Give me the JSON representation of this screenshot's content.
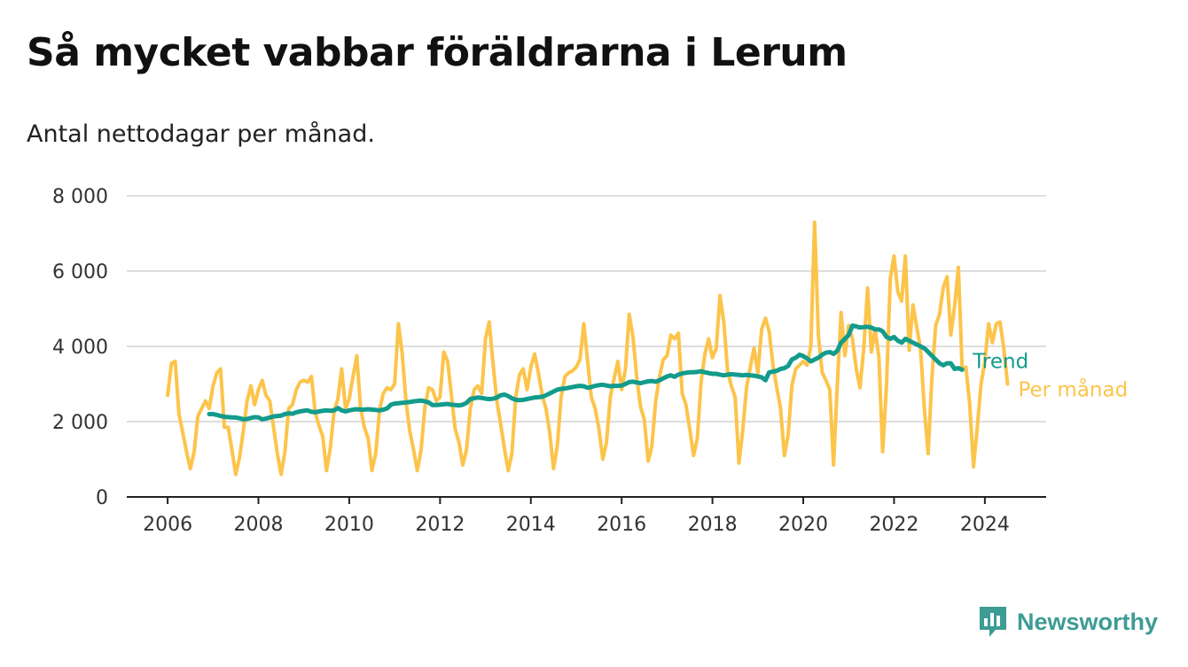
{
  "title": "Så mycket vabbar föräldrarna i Lerum",
  "subtitle": "Antal nettodagar per månad.",
  "brand": {
    "name": "Newsworthy",
    "color": "#3d9c94"
  },
  "chart_data": {
    "type": "line",
    "xlim": [
      2005.1,
      2025.35
    ],
    "ylim": [
      0,
      8000
    ],
    "yticks": [
      0,
      2000,
      4000,
      6000,
      8000
    ],
    "ytick_labels": [
      "0",
      "2 000",
      "4 000",
      "6 000",
      "8 000"
    ],
    "xticks": [
      2006,
      2008,
      2010,
      2012,
      2014,
      2016,
      2018,
      2020,
      2022,
      2024
    ],
    "xtick_labels": [
      "2006",
      "2008",
      "2010",
      "2012",
      "2014",
      "2016",
      "2018",
      "2020",
      "2022",
      "2024"
    ],
    "grid": true,
    "series": [
      {
        "name": "Per månad",
        "color": "#fcc44a",
        "x_start": 2006.0,
        "x_step_months": 1,
        "values": [
          2700,
          3550,
          3600,
          2200,
          1700,
          1200,
          750,
          1200,
          2150,
          2350,
          2550,
          2350,
          2950,
          3300,
          3400,
          1850,
          1850,
          1250,
          600,
          1050,
          1750,
          2550,
          2950,
          2450,
          2850,
          3100,
          2700,
          2550,
          1850,
          1150,
          600,
          1200,
          2350,
          2450,
          2850,
          3050,
          3100,
          3050,
          3200,
          2250,
          1900,
          1600,
          700,
          1300,
          2300,
          2600,
          3400,
          2350,
          2600,
          3200,
          3750,
          2350,
          1850,
          1550,
          700,
          1150,
          2300,
          2750,
          2900,
          2850,
          3000,
          4600,
          3800,
          2550,
          1750,
          1250,
          700,
          1250,
          2400,
          2900,
          2850,
          2550,
          2650,
          3850,
          3600,
          2700,
          1800,
          1450,
          850,
          1250,
          2350,
          2850,
          2950,
          2750,
          4200,
          4650,
          3550,
          2550,
          1950,
          1300,
          700,
          1150,
          2650,
          3250,
          3400,
          2850,
          3450,
          3800,
          3300,
          2700,
          2350,
          1700,
          750,
          1350,
          2650,
          3200,
          3300,
          3350,
          3450,
          3650,
          4600,
          3600,
          2650,
          2350,
          1800,
          1000,
          1450,
          2650,
          3150,
          3600,
          2850,
          3400,
          4850,
          4250,
          3150,
          2400,
          2050,
          950,
          1350,
          2550,
          3200,
          3650,
          3750,
          4300,
          4200,
          4350,
          2750,
          2450,
          1800,
          1100,
          1550,
          3050,
          3800,
          4200,
          3700,
          3950,
          5350,
          4650,
          3350,
          2950,
          2650,
          900,
          1750,
          2900,
          3450,
          3950,
          3300,
          4450,
          4750,
          4400,
          3500,
          2900,
          2350,
          1100,
          1650,
          2950,
          3400,
          3500,
          3600,
          3500,
          4000,
          7300,
          4300,
          3300,
          3100,
          2850,
          850,
          2950,
          4900,
          3750,
          4550,
          4200,
          3400,
          2900,
          3950,
          5550,
          3850,
          4450,
          3700,
          1200,
          2950,
          5800,
          6400,
          5450,
          5200,
          6400,
          3900,
          5100,
          4500,
          3950,
          2350,
          1150,
          3150,
          4550,
          4850,
          5550,
          5850,
          4300,
          5050,
          6100,
          3400,
          3450,
          2450,
          800,
          1850,
          3000,
          3600,
          4600,
          4100,
          4600,
          4650,
          3950,
          3000
        ]
      },
      {
        "name": "Trend",
        "color": "#139b8c",
        "x_start": 2006.9167,
        "x_step_months": 1,
        "values": [
          2200,
          2200,
          2180,
          2150,
          2130,
          2120,
          2110,
          2110,
          2090,
          2060,
          2070,
          2100,
          2120,
          2110,
          2060,
          2080,
          2110,
          2140,
          2150,
          2160,
          2200,
          2220,
          2210,
          2250,
          2270,
          2290,
          2300,
          2260,
          2250,
          2270,
          2290,
          2300,
          2290,
          2300,
          2360,
          2300,
          2270,
          2300,
          2320,
          2330,
          2320,
          2320,
          2330,
          2320,
          2310,
          2300,
          2320,
          2350,
          2450,
          2480,
          2490,
          2500,
          2510,
          2520,
          2540,
          2550,
          2560,
          2540,
          2510,
          2440,
          2440,
          2450,
          2460,
          2470,
          2450,
          2440,
          2430,
          2450,
          2500,
          2600,
          2620,
          2640,
          2630,
          2610,
          2600,
          2610,
          2640,
          2700,
          2720,
          2680,
          2620,
          2580,
          2570,
          2580,
          2600,
          2620,
          2640,
          2650,
          2660,
          2700,
          2750,
          2800,
          2850,
          2870,
          2880,
          2900,
          2920,
          2940,
          2950,
          2940,
          2900,
          2920,
          2950,
          2970,
          2980,
          2960,
          2940,
          2950,
          2950,
          2960,
          3000,
          3050,
          3060,
          3040,
          3020,
          3050,
          3070,
          3080,
          3060,
          3100,
          3150,
          3200,
          3230,
          3190,
          3250,
          3280,
          3300,
          3310,
          3310,
          3320,
          3340,
          3310,
          3290,
          3270,
          3270,
          3250,
          3230,
          3250,
          3260,
          3250,
          3240,
          3230,
          3240,
          3230,
          3220,
          3200,
          3180,
          3100,
          3310,
          3330,
          3350,
          3400,
          3420,
          3480,
          3650,
          3700,
          3780,
          3740,
          3680,
          3600,
          3650,
          3700,
          3780,
          3830,
          3850,
          3800,
          3880,
          4100,
          4200,
          4300,
          4550,
          4530,
          4500,
          4510,
          4520,
          4500,
          4450,
          4450,
          4400,
          4250,
          4200,
          4250,
          4150,
          4100,
          4200,
          4150,
          4100,
          4050,
          4000,
          3950,
          3850,
          3750,
          3650,
          3550,
          3500,
          3550,
          3550,
          3400,
          3420,
          3380
        ]
      }
    ]
  }
}
